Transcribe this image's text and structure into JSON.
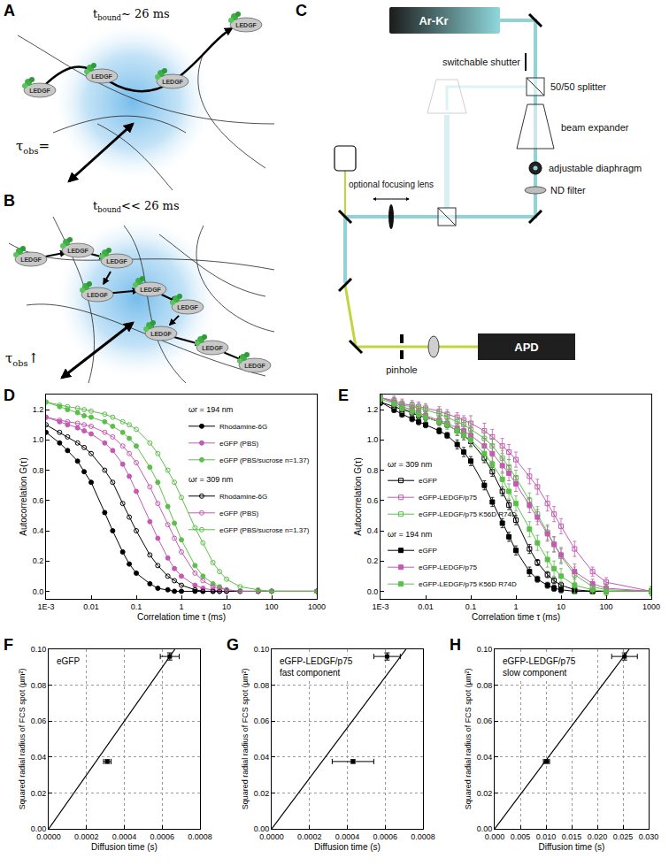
{
  "panel_labels": [
    "A",
    "B",
    "C",
    "D",
    "E",
    "F",
    "G",
    "H"
  ],
  "diagram_a": {
    "t_label": {
      "main": "t",
      "sub": "bound",
      "rest": "~ 26 ms"
    },
    "tau_label": {
      "main": "τ",
      "sub": "obs",
      "rest": "="
    },
    "molecule_label": "LEDGF"
  },
  "diagram_b": {
    "t_label": {
      "main": "t",
      "sub": "bound",
      "rest": "<< 26 ms"
    },
    "tau_label": {
      "main": "τ",
      "sub": "obs",
      "rest": "↑"
    },
    "molecule_label": "LEDGF"
  },
  "diagram_c": {
    "labels": {
      "laser": "Ar-Kr",
      "shutter": "switchable shutter",
      "splitter": "50/50 splitter",
      "expander": "beam expander",
      "diaphragm": "adjustable diaphragm",
      "nd_filter": "ND filter",
      "lens": "optional focusing lens",
      "pinhole": "pinhole",
      "detector": "APD"
    }
  },
  "chart_data": [
    {
      "type": "line",
      "x_label": "Correlation time τ (ms)",
      "y_label": "Autocorrelation G(τ)",
      "log": "x",
      "grid": false,
      "legend": "top right",
      "xlim": [
        0.001,
        1000
      ],
      "xticks": [
        {
          "value": 0.001,
          "label": "1E-3"
        },
        0.01,
        0.1,
        1,
        10,
        100,
        1000
      ],
      "ylim": [
        -0.05,
        1.3
      ],
      "yticks": [
        {
          "value": 0,
          "label": "0.0"
        },
        {
          "value": 0.2,
          "label": "0.2"
        },
        {
          "value": 0.4,
          "label": "0.4"
        },
        {
          "value": 0.6,
          "label": "0.6"
        },
        {
          "value": 0.8,
          "label": "0.8"
        },
        {
          "value": 1,
          "label": "1.0"
        },
        {
          "value": 1.2,
          "label": "1.2"
        }
      ],
      "x": [
        0.001,
        0.002,
        0.003,
        0.005,
        0.007,
        0.01,
        0.02,
        0.03,
        0.05,
        0.07,
        0.1,
        0.2,
        0.3,
        0.5,
        0.7,
        1,
        2,
        3,
        5,
        7,
        10,
        20,
        50,
        100,
        1000
      ],
      "series": [
        {
          "name": "Rhodamine-6G",
          "group": "ωr = 194 nm",
          "color": "#000000",
          "marker": "circle",
          "line_style": "solid",
          "values": [
            1.05,
            0.98,
            0.93,
            0.86,
            0.79,
            0.72,
            0.52,
            0.4,
            0.26,
            0.18,
            0.12,
            0.05,
            0.02,
            0.01,
            0,
            0,
            0,
            0,
            0,
            0,
            0,
            0,
            0,
            0,
            0
          ]
        },
        {
          "name": "eGFP (PBS)",
          "group": "ωr = 194 nm",
          "color": "#c45ab3",
          "marker": "circle",
          "line_style": "solid",
          "values": [
            1.15,
            1.12,
            1.1,
            1.08,
            1.06,
            1.04,
            0.98,
            0.93,
            0.84,
            0.76,
            0.66,
            0.46,
            0.35,
            0.22,
            0.15,
            0.1,
            0.04,
            0.02,
            0.01,
            0,
            0,
            0,
            0,
            0,
            0
          ]
        },
        {
          "name": "eGFP (PBS/sucrose n=1.37)",
          "group": "ωr = 194 nm",
          "color": "#5cbf4a",
          "marker": "circle",
          "line_style": "solid",
          "values": [
            1.25,
            1.22,
            1.2,
            1.18,
            1.16,
            1.15,
            1.12,
            1.09,
            1.05,
            1.01,
            0.96,
            0.82,
            0.72,
            0.56,
            0.45,
            0.34,
            0.17,
            0.1,
            0.05,
            0.03,
            0.01,
            0,
            0,
            0,
            0
          ]
        },
        {
          "name": "Rhodamine-6G",
          "group": "ωr = 309 nm",
          "color": "#000000",
          "marker": "circle-open",
          "line_style": "solid",
          "values": [
            1.1,
            1.05,
            1.02,
            0.98,
            0.95,
            0.91,
            0.8,
            0.72,
            0.58,
            0.49,
            0.4,
            0.24,
            0.17,
            0.1,
            0.07,
            0.04,
            0.01,
            0,
            0,
            0,
            0,
            0,
            0,
            0,
            0
          ]
        },
        {
          "name": "eGFP (PBS)",
          "group": "ωr = 309 nm",
          "color": "#c45ab3",
          "marker": "circle-open",
          "line_style": "solid",
          "values": [
            1.15,
            1.13,
            1.12,
            1.11,
            1.1,
            1.09,
            1.05,
            1.02,
            0.96,
            0.91,
            0.85,
            0.69,
            0.58,
            0.44,
            0.35,
            0.26,
            0.12,
            0.07,
            0.03,
            0.02,
            0.01,
            0,
            0,
            0,
            0
          ]
        },
        {
          "name": "eGFP (PBS/sucrose n=1.37)",
          "group": "ωr = 309 nm",
          "color": "#5cbf4a",
          "marker": "circle-open",
          "line_style": "solid",
          "values": [
            1.25,
            1.23,
            1.22,
            1.21,
            1.2,
            1.19,
            1.17,
            1.15,
            1.12,
            1.1,
            1.07,
            0.98,
            0.91,
            0.8,
            0.72,
            0.62,
            0.42,
            0.32,
            0.19,
            0.13,
            0.08,
            0.03,
            0.01,
            0,
            0
          ]
        }
      ]
    },
    {
      "type": "line",
      "x_label": "Correlation time τ (ms)",
      "y_label": "Autocorrelation G(τ)",
      "log": "x",
      "grid": false,
      "legend": "bottom left",
      "xlim": [
        0.001,
        1000
      ],
      "xticks": [
        {
          "value": 0.001,
          "label": "1E-3"
        },
        0.01,
        0.1,
        1,
        10,
        100,
        1000
      ],
      "ylim": [
        -0.05,
        1.3
      ],
      "yticks": [
        {
          "value": 0,
          "label": "0.0"
        },
        {
          "value": 0.2,
          "label": "0.2"
        },
        {
          "value": 0.4,
          "label": "0.4"
        },
        {
          "value": 0.6,
          "label": "0.6"
        },
        {
          "value": 0.8,
          "label": "0.8"
        },
        {
          "value": 1,
          "label": "1.0"
        },
        {
          "value": 1.2,
          "label": "1.2"
        }
      ],
      "x": [
        0.001,
        0.002,
        0.003,
        0.005,
        0.007,
        0.01,
        0.02,
        0.03,
        0.05,
        0.07,
        0.1,
        0.2,
        0.3,
        0.5,
        0.7,
        1,
        2,
        3,
        5,
        7,
        10,
        20,
        50,
        100,
        1000
      ],
      "series": [
        {
          "name": "eGFP",
          "group": "ωr = 309 nm",
          "color": "#000000",
          "marker": "square-open",
          "line_style": "solid",
          "values": [
            1.25,
            1.22,
            1.2,
            1.18,
            1.16,
            1.15,
            1.12,
            1.1,
            1.06,
            1.03,
            0.99,
            0.88,
            0.79,
            0.66,
            0.57,
            0.47,
            0.28,
            0.19,
            0.11,
            0.07,
            0.04,
            0.01,
            0,
            0,
            0
          ],
          "errors": [
            0.02,
            0.02,
            0.02,
            0.02,
            0.02,
            0.02,
            0.02,
            0.02,
            0.03,
            0.03,
            0.03,
            0.03,
            0.03,
            0.03,
            0.03,
            0.03,
            0.03,
            0.02,
            0.02,
            0.02,
            0.02,
            0.01,
            0.01,
            0.01,
            0.01
          ]
        },
        {
          "name": "eGFP-LEDGF/p75",
          "group": "ωr = 309 nm",
          "color": "#c45ab3",
          "marker": "square-open",
          "line_style": "solid",
          "values": [
            1.28,
            1.26,
            1.24,
            1.23,
            1.22,
            1.21,
            1.19,
            1.17,
            1.15,
            1.13,
            1.11,
            1.06,
            1.02,
            0.96,
            0.92,
            0.87,
            0.76,
            0.69,
            0.58,
            0.51,
            0.43,
            0.28,
            0.13,
            0.06,
            0
          ],
          "errors": [
            0.03,
            0.03,
            0.03,
            0.03,
            0.03,
            0.03,
            0.03,
            0.03,
            0.03,
            0.03,
            0.05,
            0.05,
            0.05,
            0.05,
            0.05,
            0.05,
            0.05,
            0.05,
            0.05,
            0.05,
            0.05,
            0.05,
            0.03,
            0.03,
            0.03
          ]
        },
        {
          "name": "eGFP-LEDGF/p75 K56D R74D",
          "group": "ωr = 309 nm",
          "color": "#5cbf4a",
          "marker": "square-open",
          "line_style": "solid",
          "values": [
            1.28,
            1.25,
            1.23,
            1.22,
            1.21,
            1.2,
            1.17,
            1.15,
            1.12,
            1.1,
            1.07,
            1.01,
            0.96,
            0.88,
            0.82,
            0.75,
            0.6,
            0.51,
            0.39,
            0.31,
            0.23,
            0.11,
            0.03,
            0.01,
            0
          ],
          "errors": [
            0.03,
            0.03,
            0.03,
            0.03,
            0.03,
            0.03,
            0.03,
            0.03,
            0.03,
            0.03,
            0.05,
            0.05,
            0.05,
            0.05,
            0.05,
            0.05,
            0.05,
            0.05,
            0.05,
            0.05,
            0.05,
            0.05,
            0.03,
            0.03,
            0.03
          ]
        },
        {
          "name": "eGFP",
          "group": "ωr = 194 nm",
          "color": "#000000",
          "marker": "square",
          "line_style": "solid",
          "values": [
            1.25,
            1.2,
            1.17,
            1.14,
            1.12,
            1.1,
            1.06,
            1.03,
            0.97,
            0.92,
            0.86,
            0.7,
            0.59,
            0.45,
            0.36,
            0.27,
            0.13,
            0.08,
            0.04,
            0.02,
            0.01,
            0,
            0,
            0,
            0
          ],
          "errors": [
            0.02,
            0.02,
            0.02,
            0.02,
            0.02,
            0.02,
            0.02,
            0.02,
            0.03,
            0.03,
            0.03,
            0.03,
            0.03,
            0.03,
            0.03,
            0.03,
            0.03,
            0.02,
            0.02,
            0.02,
            0.02,
            0.01,
            0.01,
            0.01,
            0.01
          ]
        },
        {
          "name": "eGFP-LEDGF/p75",
          "group": "ωr = 194 nm",
          "color": "#c45ab3",
          "marker": "square",
          "line_style": "solid",
          "values": [
            1.28,
            1.25,
            1.22,
            1.2,
            1.18,
            1.16,
            1.13,
            1.11,
            1.08,
            1.06,
            1.03,
            0.96,
            0.91,
            0.83,
            0.78,
            0.71,
            0.57,
            0.49,
            0.38,
            0.31,
            0.24,
            0.13,
            0.05,
            0.02,
            0
          ],
          "errors": [
            0.03,
            0.03,
            0.03,
            0.03,
            0.03,
            0.03,
            0.03,
            0.03,
            0.03,
            0.03,
            0.05,
            0.05,
            0.05,
            0.05,
            0.05,
            0.05,
            0.05,
            0.05,
            0.05,
            0.05,
            0.05,
            0.05,
            0.03,
            0.03,
            0.03
          ]
        },
        {
          "name": "eGFP-LEDGF/p75 K56D R74D",
          "group": "ωr = 194 nm",
          "color": "#5cbf4a",
          "marker": "square",
          "line_style": "solid",
          "values": [
            1.27,
            1.24,
            1.21,
            1.19,
            1.17,
            1.15,
            1.12,
            1.1,
            1.06,
            1.03,
            1.0,
            0.91,
            0.84,
            0.74,
            0.66,
            0.58,
            0.41,
            0.32,
            0.21,
            0.15,
            0.1,
            0.04,
            0.01,
            0,
            0
          ],
          "errors": [
            0.03,
            0.03,
            0.03,
            0.03,
            0.03,
            0.03,
            0.03,
            0.03,
            0.03,
            0.03,
            0.05,
            0.05,
            0.05,
            0.05,
            0.05,
            0.05,
            0.05,
            0.05,
            0.05,
            0.05,
            0.05,
            0.05,
            0.03,
            0.03,
            0.03
          ]
        }
      ]
    },
    {
      "type": "scatter",
      "x_label": "Diffusion time (s)",
      "y_label": "Squared radial radius of FCS spot (µm²)",
      "annotations": [
        "eGFP"
      ],
      "grid": true,
      "xlim": [
        0,
        0.0008
      ],
      "xticks": [
        {
          "value": 0,
          "label": "0.0000"
        },
        {
          "value": 0.0002,
          "label": "0.0002"
        },
        {
          "value": 0.0004,
          "label": "0.0004"
        },
        {
          "value": 0.0006,
          "label": "0.0006"
        },
        {
          "value": 0.0008,
          "label": "0.0008"
        }
      ],
      "ylim": [
        0,
        0.1
      ],
      "yticks": [
        {
          "value": 0,
          "label": "0.00"
        },
        0.02,
        0.04,
        0.06,
        0.08,
        {
          "value": 0.1,
          "label": "0.10"
        }
      ],
      "series": [
        {
          "type": "scatter",
          "color": "#000000",
          "marker": "square",
          "x": [
            0.00031,
            0.00064
          ],
          "values": [
            0.0375,
            0.096
          ],
          "x_errors": [
            2e-05,
            5e-05
          ],
          "y_errors": [
            0.001,
            0.002
          ]
        },
        {
          "type": "line",
          "color": "#000000",
          "line_style": "solid",
          "x": [
            0,
            0.000667
          ],
          "values": [
            0,
            0.1
          ]
        }
      ]
    },
    {
      "type": "scatter",
      "x_label": "Diffusion time (s)",
      "y_label": "Squared radial radius of FCS spot (µm²)",
      "annotations": [
        "eGFP-LEDGF/p75",
        "fast component"
      ],
      "grid": true,
      "xlim": [
        0,
        0.0008
      ],
      "xticks": [
        {
          "value": 0,
          "label": "0.0000"
        },
        {
          "value": 0.0002,
          "label": "0.0002"
        },
        {
          "value": 0.0004,
          "label": "0.0004"
        },
        {
          "value": 0.0006,
          "label": "0.0006"
        },
        {
          "value": 0.0008,
          "label": "0.0008"
        }
      ],
      "ylim": [
        0,
        0.1
      ],
      "yticks": [
        {
          "value": 0,
          "label": "0.00"
        },
        0.02,
        0.04,
        0.06,
        0.08,
        {
          "value": 0.1,
          "label": "0.10"
        }
      ],
      "series": [
        {
          "type": "scatter",
          "color": "#000000",
          "marker": "square",
          "x": [
            0.00043,
            0.00061
          ],
          "values": [
            0.0375,
            0.096
          ],
          "x_errors": [
            0.00011,
            7e-05
          ],
          "y_errors": [
            0.001,
            0.002
          ]
        },
        {
          "type": "line",
          "color": "#000000",
          "line_style": "solid",
          "x": [
            0,
            0.00071
          ],
          "values": [
            0,
            0.1
          ]
        }
      ]
    },
    {
      "type": "scatter",
      "x_label": "Diffusion time (s)",
      "y_label": "Squared radial radius of FCS spot (µm²)",
      "annotations": [
        "eGFP-LEDGF/p75",
        "slow component"
      ],
      "grid": true,
      "xlim": [
        0,
        0.03
      ],
      "xticks": [
        {
          "value": 0,
          "label": "0.000"
        },
        0.005,
        {
          "value": 0.01,
          "label": "0.010"
        },
        0.015,
        {
          "value": 0.02,
          "label": "0.020"
        },
        0.025,
        {
          "value": 0.03,
          "label": "0.030"
        }
      ],
      "ylim": [
        0,
        0.1
      ],
      "yticks": [
        {
          "value": 0,
          "label": "0.00"
        },
        0.02,
        0.04,
        0.06,
        0.08,
        {
          "value": 0.1,
          "label": "0.10"
        }
      ],
      "series": [
        {
          "type": "scatter",
          "color": "#000000",
          "marker": "square",
          "x": [
            0.0101,
            0.0253
          ],
          "values": [
            0.0375,
            0.096
          ],
          "x_errors": [
            0.0006,
            0.0025
          ],
          "y_errors": [
            0.001,
            0.002
          ]
        },
        {
          "type": "line",
          "color": "#000000",
          "line_style": "solid",
          "x": [
            0,
            0.0262
          ],
          "values": [
            0,
            0.1
          ]
        }
      ]
    }
  ]
}
